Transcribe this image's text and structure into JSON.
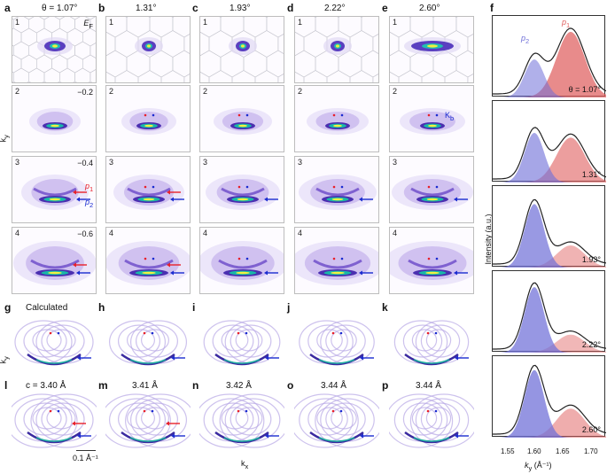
{
  "columns": [
    {
      "letter": "a",
      "angle": "θ = 1.07°"
    },
    {
      "letter": "b",
      "angle": "1.31°"
    },
    {
      "letter": "c",
      "angle": "1.93°"
    },
    {
      "letter": "d",
      "angle": "2.22°"
    },
    {
      "letter": "e",
      "angle": "2.60°"
    }
  ],
  "rows": [
    "1",
    "2",
    "3",
    "4"
  ],
  "energies": [
    "E_F",
    "−0.2",
    "−0.4",
    "−0.6"
  ],
  "ef_label": "E",
  "ef_sub": "F",
  "ky_label": "k",
  "ky_sub": "y",
  "kx_label": "k",
  "kx_sub": "x",
  "p1_label": "p",
  "p1_sub": "1",
  "p2_label": "p",
  "p2_sub": "2",
  "kb_label": "K",
  "kb_sub": "b",
  "calc_top": {
    "letters": [
      "g",
      "h",
      "i",
      "j",
      "k"
    ],
    "first_label": "Calculated"
  },
  "calc_bottom": {
    "letters": [
      "l",
      "m",
      "n",
      "o",
      "p"
    ],
    "values": [
      "c = 3.40 Å",
      "3.41 Å",
      "3.42 Å",
      "3.44 Å",
      "3.44 Å"
    ]
  },
  "scale_bar": "0.1 Å⁻¹",
  "panel_f": {
    "letter": "f",
    "ylabel": "Intensity (a.u.)",
    "xlabel": "k",
    "xlabel_sub": "y",
    "xunit": " (Å⁻¹)",
    "xticks": [
      "1.55",
      "1.60",
      "1.65",
      "1.70"
    ],
    "angles": [
      "θ = 1.07°",
      "1.31°",
      "1.93°",
      "2.22°",
      "2.60°"
    ],
    "colors": {
      "p1": "#e06060",
      "p2": "#7070d8"
    }
  },
  "colors": {
    "red_marker": "#e8202a",
    "blue_marker": "#1a2bd0"
  }
}
